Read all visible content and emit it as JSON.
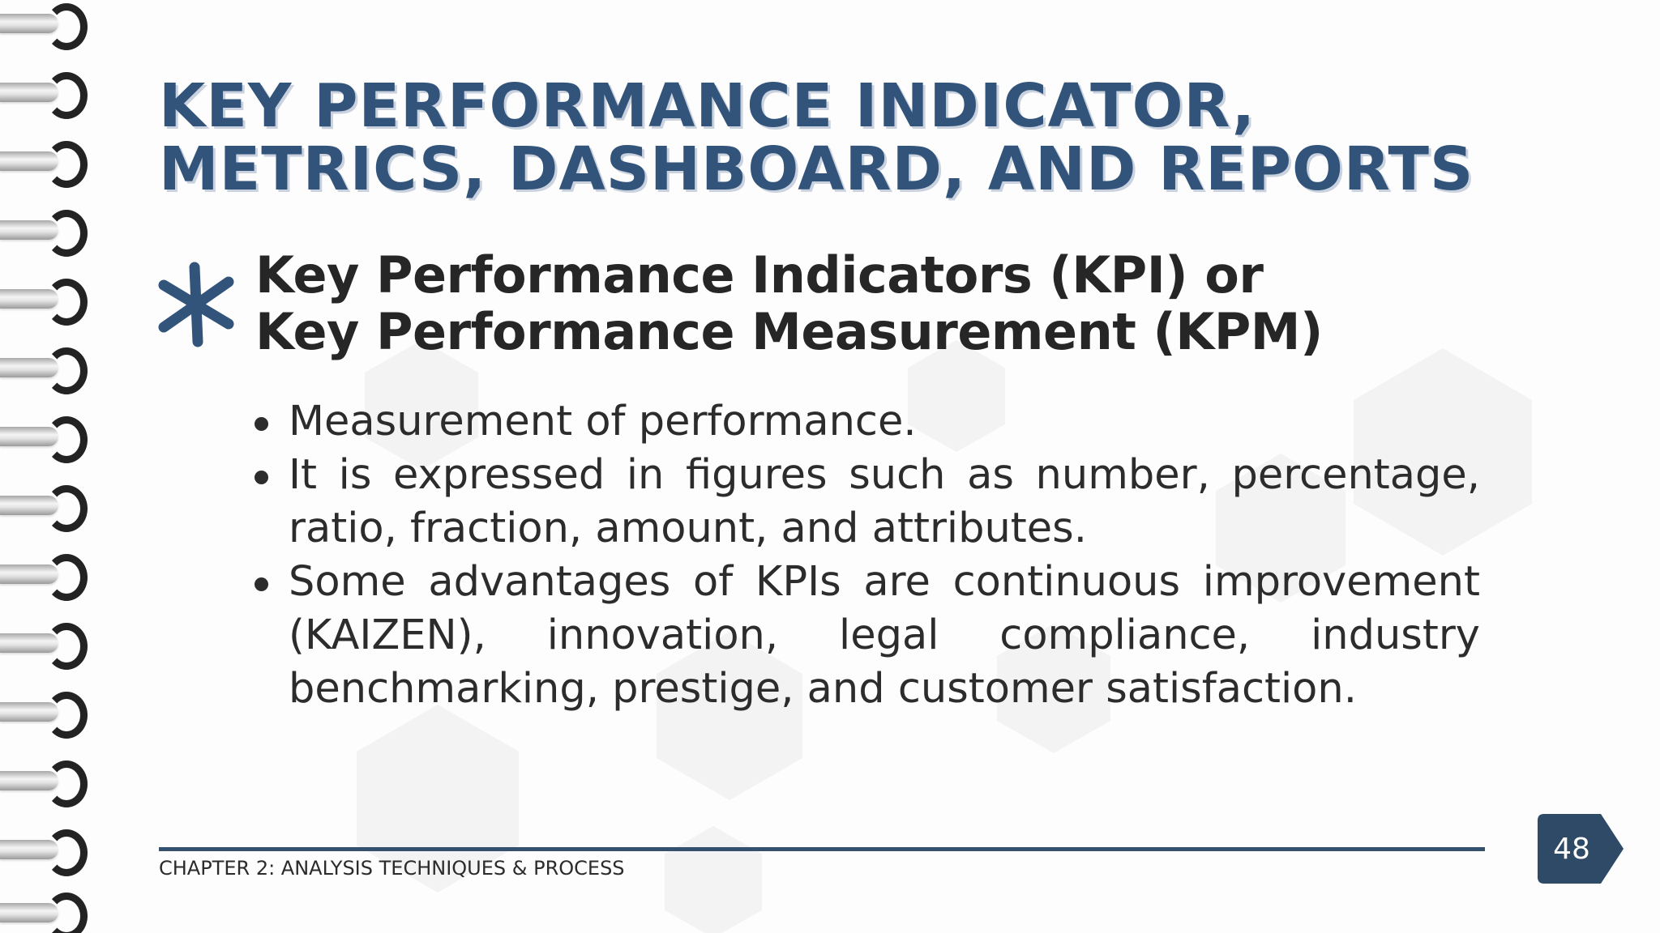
{
  "slide": {
    "title_lines": [
      "KEY PERFORMANCE INDICATOR,",
      "METRICS, DASHBOARD, AND REPORTS"
    ],
    "subtitle_lines": [
      "Key Performance Indicators (KPI) or",
      "Key Performance Measurement (KPM)"
    ],
    "bullets": [
      "Measurement of performance.",
      "It is expressed in figures such as number, percentage, ratio, fraction, amount, and attributes.",
      "Some advantages of KPIs are continuous improvement (KAIZEN), innovation, legal compliance, industry benchmarking, prestige, and customer satisfaction."
    ],
    "footer": "CHAPTER 2: ANALYSIS TECHNIQUES & PROCESS",
    "page_number": "48"
  },
  "colors": {
    "title": "#33547a",
    "accent": "#33516f",
    "text": "#262626",
    "badge": "#2f4a66"
  },
  "icons": {
    "bullet_marker": "asterisk-icon",
    "binding": "spiral-binding"
  }
}
